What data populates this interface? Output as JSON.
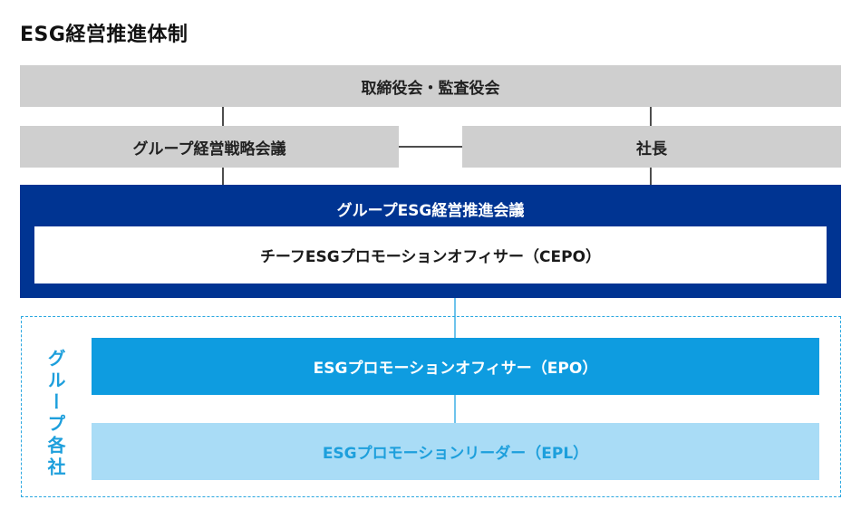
{
  "title": "ESG経営推進体制",
  "board": "取締役会・監査役会",
  "strategy_meeting": "グループ経営戦略会議",
  "president": "社長",
  "esg_meeting": "グループESG経営推進会議",
  "cepo": "チーフESGプロモーションオフィサー（CEPO）",
  "group_label": "グループ各社",
  "epo": "ESGプロモーションオフィサー（EPO）",
  "epl": "ESGプロモーションリーダー（EPL）",
  "colors": {
    "gray_box": "#cfcfcf",
    "navy": "#003492",
    "epo_blue": "#0e9ce0",
    "epl_light_blue": "#a9dcf6",
    "accent_text": "#1d9fdc"
  }
}
